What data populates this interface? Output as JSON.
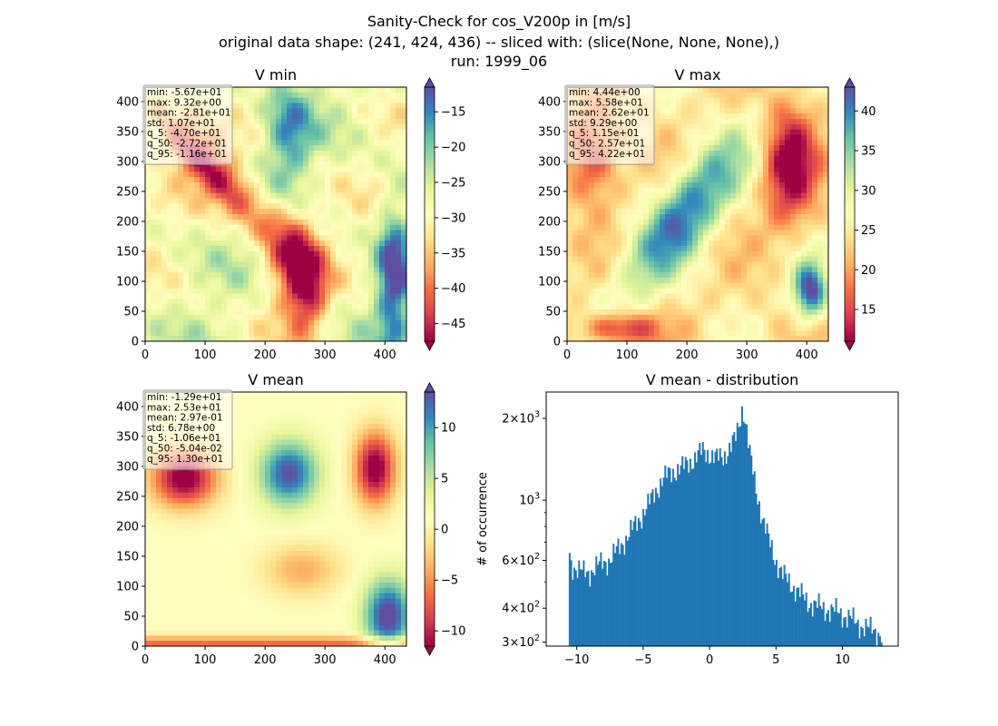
{
  "suptitle": {
    "line1": "Sanity-Check for cos_V200p in [m/s]",
    "line2": "original data shape: (241, 424, 436) -- sliced with: (slice(None, None, None),)",
    "line3": "run: 1999_06"
  },
  "colors": {
    "hist_bar": "#1f77b4",
    "cmap_spectral": [
      "#9e0142",
      "#d53e4f",
      "#f46d43",
      "#fdae61",
      "#fee08b",
      "#ffffbf",
      "#e6f598",
      "#abdda4",
      "#66c2a5",
      "#3288bd",
      "#5e4fa2"
    ]
  },
  "chart_data": [
    {
      "type": "heatmap",
      "title": "V min",
      "xlim": [
        0,
        436
      ],
      "ylim": [
        0,
        424
      ],
      "x_ticks": [
        "0",
        "100",
        "200",
        "300",
        "400"
      ],
      "y_ticks": [
        "0",
        "50",
        "100",
        "150",
        "200",
        "250",
        "300",
        "350",
        "400"
      ],
      "colorbar": {
        "vmin": -47.5,
        "vmax": -11.5,
        "ticks": [
          -45,
          -40,
          -35,
          -30,
          -25,
          -20,
          -15
        ],
        "cmap": "Spectral",
        "extend": "both"
      },
      "stats": [
        "min: -5.67e+01",
        "max: 9.32e+00",
        "mean: -2.81e+01",
        "std: 1.07e+01",
        "q_5: -4.70e+01",
        "q_50: -2.72e+01",
        "q_95: -1.16e+01"
      ]
    },
    {
      "type": "heatmap",
      "title": "V max",
      "xlim": [
        0,
        436
      ],
      "ylim": [
        0,
        424
      ],
      "x_ticks": [
        "0",
        "100",
        "200",
        "300",
        "400"
      ],
      "y_ticks": [
        "0",
        "50",
        "100",
        "150",
        "200",
        "250",
        "300",
        "350",
        "400"
      ],
      "colorbar": {
        "vmin": 11,
        "vmax": 43,
        "ticks": [
          15,
          20,
          25,
          30,
          35,
          40
        ],
        "cmap": "Spectral",
        "extend": "both"
      },
      "stats": [
        "min: 4.44e+00",
        "max: 5.58e+01",
        "mean: 2.62e+01",
        "std: 9.29e+00",
        "q_5: 1.15e+01",
        "q_50: 2.57e+01",
        "q_95: 4.22e+01"
      ]
    },
    {
      "type": "heatmap",
      "title": "V mean",
      "xlim": [
        0,
        436
      ],
      "ylim": [
        0,
        424
      ],
      "x_ticks": [
        "0",
        "100",
        "200",
        "300",
        "400"
      ],
      "y_ticks": [
        "0",
        "50",
        "100",
        "150",
        "200",
        "250",
        "300",
        "350",
        "400"
      ],
      "colorbar": {
        "vmin": -11.5,
        "vmax": 13.5,
        "ticks": [
          -10,
          -5,
          0,
          5,
          10
        ],
        "cmap": "Spectral",
        "extend": "both"
      },
      "stats": [
        "min: -1.29e+01",
        "max: 2.53e+01",
        "mean: 2.97e-01",
        "std: 6.78e+00",
        "q_5: -1.06e+01",
        "q_50: -5.04e-02",
        "q_95: 1.30e+01"
      ]
    },
    {
      "type": "bar",
      "title": "V mean - distribution",
      "ylabel": "# of occurrence",
      "xlabel": "",
      "xlim": [
        -12.3,
        14.2
      ],
      "ylim": [
        290,
        2500
      ],
      "yscale": "log",
      "x_ticks": [
        -10,
        -5,
        0,
        5,
        10
      ],
      "y_ticks": [
        {
          "value": 300,
          "mantissa": "3",
          "exp": "2"
        },
        {
          "value": 400,
          "mantissa": "4",
          "exp": "2"
        },
        {
          "value": 600,
          "mantissa": "6",
          "exp": "2"
        },
        {
          "value": 1000,
          "mantissa": "",
          "exp": "3"
        },
        {
          "value": 2000,
          "mantissa": "2",
          "exp": "3"
        }
      ],
      "bin_range": [
        -10.6,
        13.0
      ],
      "bin_count": 200,
      "profile": [
        [
          -10.6,
          640
        ],
        [
          -10.4,
          580
        ],
        [
          -10.0,
          560
        ],
        [
          -9.5,
          540
        ],
        [
          -9.0,
          545
        ],
        [
          -8.5,
          570
        ],
        [
          -8.0,
          590
        ],
        [
          -7.5,
          605
        ],
        [
          -7.0,
          650
        ],
        [
          -6.5,
          700
        ],
        [
          -6.0,
          760
        ],
        [
          -5.5,
          820
        ],
        [
          -5.0,
          900
        ],
        [
          -4.5,
          980
        ],
        [
          -4.0,
          1100
        ],
        [
          -3.5,
          1200
        ],
        [
          -3.0,
          1250
        ],
        [
          -2.5,
          1300
        ],
        [
          -2.0,
          1320
        ],
        [
          -1.5,
          1380
        ],
        [
          -1.0,
          1450
        ],
        [
          -0.5,
          1520
        ],
        [
          0.0,
          1480
        ],
        [
          0.5,
          1420
        ],
        [
          1.0,
          1450
        ],
        [
          1.5,
          1550
        ],
        [
          2.0,
          1700
        ],
        [
          2.3,
          2000
        ],
        [
          2.5,
          2250
        ],
        [
          2.8,
          1800
        ],
        [
          3.0,
          1500
        ],
        [
          3.5,
          1100
        ],
        [
          4.0,
          850
        ],
        [
          4.5,
          700
        ],
        [
          5.0,
          600
        ],
        [
          5.5,
          530
        ],
        [
          6.0,
          500
        ],
        [
          6.5,
          470
        ],
        [
          7.0,
          440
        ],
        [
          7.5,
          420
        ],
        [
          8.0,
          410
        ],
        [
          8.5,
          400
        ],
        [
          9.0,
          395
        ],
        [
          9.5,
          390
        ],
        [
          10.0,
          380
        ],
        [
          10.5,
          370
        ],
        [
          11.0,
          355
        ],
        [
          11.5,
          345
        ],
        [
          12.0,
          335
        ],
        [
          12.5,
          330
        ],
        [
          13.0,
          320
        ]
      ]
    }
  ]
}
